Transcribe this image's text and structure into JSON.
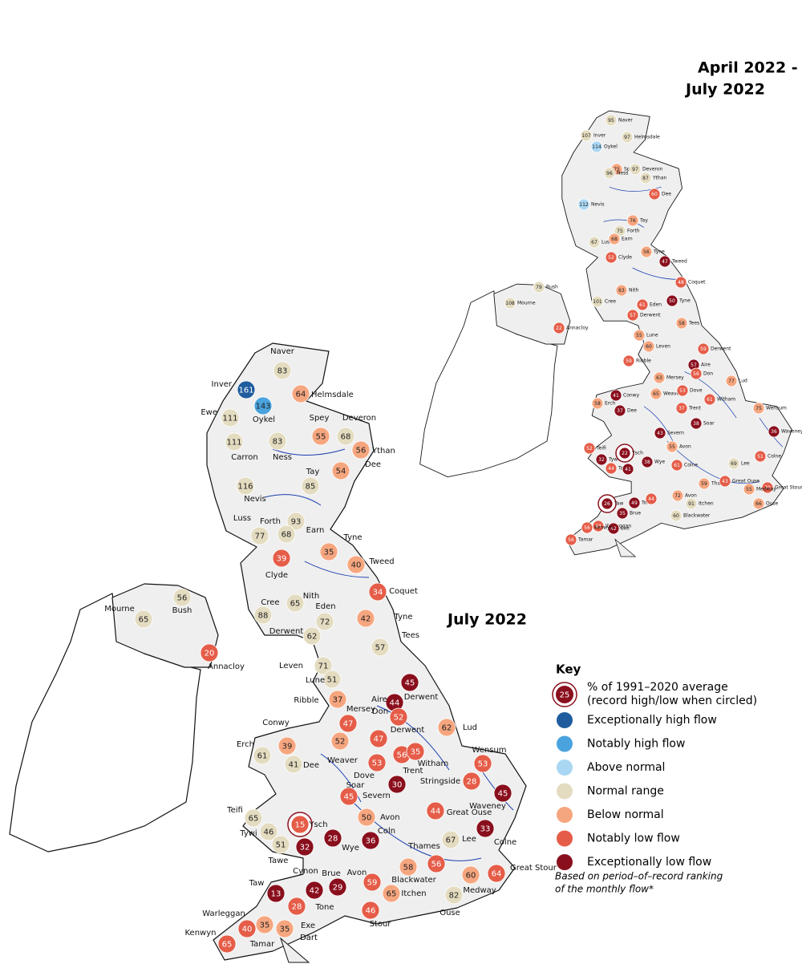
{
  "maps": [
    {
      "title": "July 2022",
      "other_labels": [
        "Dart"
      ],
      "stations": [
        {
          "name": "Naver",
          "value": 83,
          "class": "Normal range"
        },
        {
          "name": "Inver",
          "value": 161,
          "class": "Exceptionally high flow"
        },
        {
          "name": "Helmsdale",
          "value": 64,
          "class": "Below normal"
        },
        {
          "name": "Oykel",
          "value": 143,
          "class": "Notably high flow"
        },
        {
          "name": "Ewe",
          "value": 111,
          "class": "Normal range"
        },
        {
          "name": "Carron",
          "value": 111,
          "class": "Normal range"
        },
        {
          "name": "Ness",
          "value": 83,
          "class": "Normal range"
        },
        {
          "name": "Spey",
          "value": 55,
          "class": "Below normal"
        },
        {
          "name": "Deveron",
          "value": 68,
          "class": "Normal range"
        },
        {
          "name": "Ythan",
          "value": 56,
          "class": "Below normal"
        },
        {
          "name": "Dee",
          "value": 54,
          "class": "Below normal"
        },
        {
          "name": "Nevis",
          "value": 116,
          "class": "Normal range"
        },
        {
          "name": "Tay",
          "value": 85,
          "class": "Normal range"
        },
        {
          "name": "Luss",
          "value": 77,
          "class": "Normal range"
        },
        {
          "name": "Forth",
          "value": 93,
          "class": "Normal range"
        },
        {
          "name": "Earn",
          "value": 68,
          "class": "Normal range"
        },
        {
          "name": "Tyne",
          "value": 35,
          "class": "Below normal"
        },
        {
          "name": "Clyde",
          "value": 39,
          "class": "Notably low flow"
        },
        {
          "name": "Tweed",
          "value": 40,
          "class": "Below normal"
        },
        {
          "name": "Coquet",
          "value": 34,
          "class": "Notably low flow"
        },
        {
          "name": "Nith",
          "value": 65,
          "class": "Normal range"
        },
        {
          "name": "Cree",
          "value": 88,
          "class": "Normal range"
        },
        {
          "name": "Eden",
          "value": 72,
          "class": "Normal range"
        },
        {
          "name": "Tyne",
          "value": 42,
          "class": "Below normal"
        },
        {
          "name": "Derwent",
          "value": 62,
          "class": "Normal range"
        },
        {
          "name": "Tees",
          "value": 57,
          "class": "Normal range"
        },
        {
          "name": "Mourne",
          "value": 65,
          "class": "Normal range"
        },
        {
          "name": "Bush",
          "value": 56,
          "class": "Normal range"
        },
        {
          "name": "Annacloy",
          "value": 20,
          "class": "Notably low flow"
        },
        {
          "name": "Leven",
          "value": 71,
          "class": "Normal range"
        },
        {
          "name": "Lune",
          "value": 51,
          "class": "Normal range"
        },
        {
          "name": "Derwent",
          "value": 45,
          "class": "Exceptionally low flow"
        },
        {
          "name": "Ribble",
          "value": 37,
          "class": "Below normal"
        },
        {
          "name": "Aire",
          "value": 44,
          "class": "Exceptionally low flow"
        },
        {
          "name": "Don",
          "value": 52,
          "class": "Notably low flow"
        },
        {
          "name": "Mersey",
          "value": 47,
          "class": "Notably low flow"
        },
        {
          "name": "Derwent",
          "value": 47,
          "class": "Notably low flow"
        },
        {
          "name": "Lud",
          "value": 62,
          "class": "Below normal"
        },
        {
          "name": "Conwy",
          "value": 39,
          "class": "Below normal"
        },
        {
          "name": "Weaver",
          "value": 52,
          "class": "Below normal"
        },
        {
          "name": "Erch",
          "value": 61,
          "class": "Normal range"
        },
        {
          "name": "Dee",
          "value": 41,
          "class": "Normal range"
        },
        {
          "name": "Dove",
          "value": 53,
          "class": "Notably low flow"
        },
        {
          "name": "Trent",
          "value": 56,
          "class": "Notably low flow"
        },
        {
          "name": "Witham",
          "value": 35,
          "class": "Notably low flow"
        },
        {
          "name": "Wensum",
          "value": 53,
          "class": "Notably low flow"
        },
        {
          "name": "Soar",
          "value": 30,
          "class": "Exceptionally low flow"
        },
        {
          "name": "Stringside",
          "value": 28,
          "class": "Notably low flow"
        },
        {
          "name": "Severn",
          "value": 45,
          "class": "Notably low flow"
        },
        {
          "name": "Waveney",
          "value": 45,
          "class": "Exceptionally low flow"
        },
        {
          "name": "Teifi",
          "value": 65,
          "class": "Normal range"
        },
        {
          "name": "Avon",
          "value": 50,
          "class": "Below normal"
        },
        {
          "name": "Great Ouse",
          "value": 44,
          "class": "Notably low flow"
        },
        {
          "name": "Colne",
          "value": 33,
          "class": "Exceptionally low flow"
        },
        {
          "name": "Ysch",
          "value": 15,
          "class": "Notably low flow",
          "record": true
        },
        {
          "name": "Tywi",
          "value": 46,
          "class": "Normal range"
        },
        {
          "name": "Wye",
          "value": 28,
          "class": "Exceptionally low flow"
        },
        {
          "name": "Coln",
          "value": 36,
          "class": "Exceptionally low flow"
        },
        {
          "name": "Lee",
          "value": 67,
          "class": "Normal range"
        },
        {
          "name": "Tawe",
          "value": 51,
          "class": "Normal range"
        },
        {
          "name": "Cynon",
          "value": 32,
          "class": "Exceptionally low flow"
        },
        {
          "name": "Thames",
          "value": 56,
          "class": "Notably low flow"
        },
        {
          "name": "Brue",
          "value": 42,
          "class": "Exceptionally low flow"
        },
        {
          "name": null,
          "value": 29,
          "class": "Exceptionally low flow"
        },
        {
          "name": "Avon",
          "value": 59,
          "class": "Notably low flow"
        },
        {
          "name": "Blackwater",
          "value": 58,
          "class": "Below normal"
        },
        {
          "name": "Itchen",
          "value": 65,
          "class": "Below normal"
        },
        {
          "name": "Medway",
          "value": 60,
          "class": "Below normal"
        },
        {
          "name": "Great Stour",
          "value": 64,
          "class": "Notably low flow"
        },
        {
          "name": "Taw",
          "value": 13,
          "class": "Exceptionally low flow"
        },
        {
          "name": "Tone",
          "value": 28,
          "class": "Notably low flow"
        },
        {
          "name": "Stour",
          "value": 46,
          "class": "Notably low flow"
        },
        {
          "name": "Ouse",
          "value": 82,
          "class": "Normal range"
        },
        {
          "name": "Tamar",
          "value": 35,
          "class": "Below normal"
        },
        {
          "name": "Exe",
          "value": 35,
          "class": "Below normal"
        },
        {
          "name": "Warleggan",
          "value": 40,
          "class": "Notably low flow"
        },
        {
          "name": "Kenwyn",
          "value": 65,
          "class": "Notably low flow"
        }
      ]
    },
    {
      "title_lines": [
        "April 2022 -",
        "July 2022"
      ],
      "stations": [
        {
          "name": "Naver",
          "value": 95,
          "class": "Normal range"
        },
        {
          "name": "Inver",
          "value": 107,
          "class": "Normal range"
        },
        {
          "name": "Helmsdale",
          "value": 97,
          "class": "Normal range"
        },
        {
          "name": "Oykel",
          "value": 114,
          "class": "Above normal"
        },
        {
          "name": "Spey",
          "value": 75,
          "class": "Below normal"
        },
        {
          "name": "Deveron",
          "value": 97,
          "class": "Normal range"
        },
        {
          "name": "Ythan",
          "value": 87,
          "class": "Normal range"
        },
        {
          "name": "Ness",
          "value": 96,
          "class": "Normal range"
        },
        {
          "name": "Dee",
          "value": 60,
          "class": "Notably low flow"
        },
        {
          "name": "Nevis",
          "value": 112,
          "class": "Above normal"
        },
        {
          "name": "Tay",
          "value": 76,
          "class": "Below normal"
        },
        {
          "name": "Forth",
          "value": 75,
          "class": "Normal range"
        },
        {
          "name": "Luss",
          "value": 67,
          "class": "Normal range"
        },
        {
          "name": "Earn",
          "value": 68,
          "class": "Below normal"
        },
        {
          "name": "Tyne",
          "value": 56,
          "class": "Below normal"
        },
        {
          "name": "Clyde",
          "value": 52,
          "class": "Notably low flow"
        },
        {
          "name": "Tweed",
          "value": 47,
          "class": "Exceptionally low flow"
        },
        {
          "name": "Coquet",
          "value": 48,
          "class": "Notably low flow"
        },
        {
          "name": "Nith",
          "value": 63,
          "class": "Below normal"
        },
        {
          "name": "Cree",
          "value": 101,
          "class": "Normal range"
        },
        {
          "name": "Eden",
          "value": 61,
          "class": "Notably low flow"
        },
        {
          "name": "Tyne",
          "value": 50,
          "class": "Exceptionally low flow"
        },
        {
          "name": "Derwent",
          "value": 57,
          "class": "Notably low flow"
        },
        {
          "name": "Tees",
          "value": 58,
          "class": "Below normal"
        },
        {
          "name": "Lune",
          "value": 55,
          "class": "Below normal"
        },
        {
          "name": "Leven",
          "value": 60,
          "class": "Below normal"
        },
        {
          "name": "Ribble",
          "value": 59,
          "class": "Notably low flow"
        },
        {
          "name": "Derwent",
          "value": 59,
          "class": "Notably low flow"
        },
        {
          "name": "Aire",
          "value": 57,
          "class": "Exceptionally low flow"
        },
        {
          "name": "Mersey",
          "value": 63,
          "class": "Below normal"
        },
        {
          "name": "Don",
          "value": 56,
          "class": "Notably low flow"
        },
        {
          "name": "Lud",
          "value": 77,
          "class": "Below normal"
        },
        {
          "name": "Conwy",
          "value": 41,
          "class": "Exceptionally low flow"
        },
        {
          "name": "Weaver",
          "value": 65,
          "class": "Below normal"
        },
        {
          "name": "Dove",
          "value": 53,
          "class": "Notably low flow"
        },
        {
          "name": "Witham",
          "value": 61,
          "class": "Notably low flow"
        },
        {
          "name": "Wensum",
          "value": 75,
          "class": "Below normal"
        },
        {
          "name": "Erch",
          "value": 58,
          "class": "Below normal"
        },
        {
          "name": "Dee",
          "value": 37,
          "class": "Exceptionally low flow"
        },
        {
          "name": "Trent",
          "value": 37,
          "class": "Notably low flow"
        },
        {
          "name": "Soar",
          "value": 38,
          "class": "Exceptionally low flow"
        },
        {
          "name": "Severn",
          "value": 43,
          "class": "Exceptionally low flow"
        },
        {
          "name": "Avon",
          "value": 55,
          "class": "Below normal"
        },
        {
          "name": "Waveney",
          "value": 36,
          "class": "Exceptionally low flow"
        },
        {
          "name": "Teifi",
          "value": 52,
          "class": "Notably low flow"
        },
        {
          "name": "Tywi",
          "value": 32,
          "class": "Exceptionally low flow"
        },
        {
          "name": "Ysch",
          "value": 22,
          "class": "Exceptionally low flow",
          "record": true
        },
        {
          "name": "Wye",
          "value": 38,
          "class": "Exceptionally low flow"
        },
        {
          "name": "Colne",
          "value": 61,
          "class": "Notably low flow"
        },
        {
          "name": "Tawe",
          "value": 44,
          "class": "Notably low flow"
        },
        {
          "name": null,
          "value": 41,
          "class": "Exceptionally low flow"
        },
        {
          "name": "Lee",
          "value": 69,
          "class": "Normal range"
        },
        {
          "name": "Colne",
          "value": 51,
          "class": "Notably low flow"
        },
        {
          "name": "Thames",
          "value": 59,
          "class": "Below normal"
        },
        {
          "name": "Great Ouse",
          "value": 43,
          "class": "Notably low flow"
        },
        {
          "name": "Great Stour",
          "value": 70,
          "class": "Notably low flow"
        },
        {
          "name": "Medway",
          "value": 55,
          "class": "Below normal"
        },
        {
          "name": "Taw",
          "value": 26,
          "class": "Exceptionally low flow",
          "record": true
        },
        {
          "name": "Brue",
          "value": 35,
          "class": "Exceptionally low flow"
        },
        {
          "name": "Tone",
          "value": 49,
          "class": "Exceptionally low flow"
        },
        {
          "name": null,
          "value": 44,
          "class": "Notably low flow"
        },
        {
          "name": "Avon",
          "value": 72,
          "class": "Below normal"
        },
        {
          "name": "Itchen",
          "value": 91,
          "class": "Normal range"
        },
        {
          "name": "Blackwater",
          "value": 60,
          "class": "Normal range"
        },
        {
          "name": "Ouse",
          "value": 66,
          "class": "Below normal"
        },
        {
          "name": "Warleggan",
          "value": 43,
          "class": "Notably low flow"
        },
        {
          "name": "Exe",
          "value": 42,
          "class": "Exceptionally low flow"
        },
        {
          "name": "Kenwyn",
          "value": 56,
          "class": "Notably low flow"
        },
        {
          "name": "Tamar",
          "value": 56,
          "class": "Notably low flow"
        },
        {
          "name": "Mourne",
          "value": 108,
          "class": "Normal range"
        },
        {
          "name": "Bush",
          "value": 79,
          "class": "Normal range"
        },
        {
          "name": "Annacloy",
          "value": 22,
          "class": "Notably low flow"
        }
      ]
    }
  ],
  "key": {
    "title": "Key",
    "example": {
      "value": 25,
      "lines": [
        "% of 1991–2020 average",
        "(record high/low when circled)"
      ]
    },
    "items": [
      {
        "label": "Exceptionally high flow",
        "color": "#1f5c9e"
      },
      {
        "label": "Notably high flow",
        "color": "#4aa3de"
      },
      {
        "label": "Above normal",
        "color": "#a9d7f3"
      },
      {
        "label": "Normal range",
        "color": "#e4dcc0"
      },
      {
        "label": "Below normal",
        "color": "#f6a67f"
      },
      {
        "label": "Notably low flow",
        "color": "#e55d49"
      },
      {
        "label": "Exceptionally low flow",
        "color": "#8a0f1d"
      }
    ],
    "note_lines": [
      "Based on period–of–record ranking",
      "of the monthly flow*"
    ]
  }
}
